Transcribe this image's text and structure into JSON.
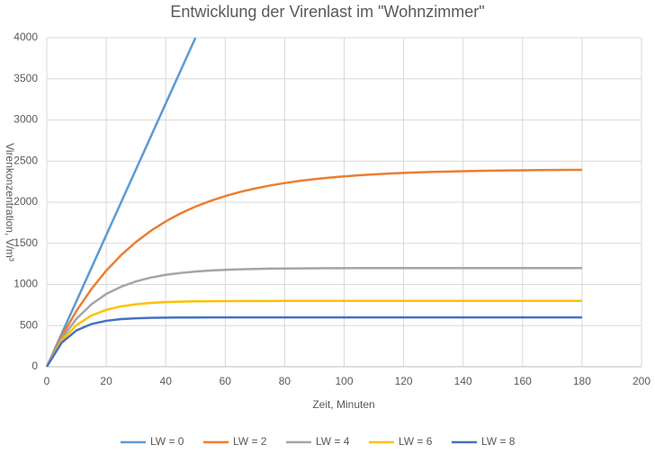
{
  "chart_data": {
    "type": "line",
    "title": "Entwicklung der Virenlast im \"Wohnzimmer\"",
    "x_label": "Zeit, Minuten",
    "y_label": "Virenkonzentration, V/m³",
    "x": [
      0,
      5,
      10,
      15,
      20,
      25,
      30,
      35,
      40,
      45,
      50,
      55,
      60,
      65,
      70,
      75,
      80,
      85,
      90,
      95,
      100,
      105,
      110,
      115,
      120,
      125,
      130,
      135,
      140,
      145,
      150,
      155,
      160,
      165,
      170,
      175,
      180
    ],
    "series": [
      {
        "name": "LW = 0",
        "color": "#5b9bd5",
        "values": [
          0,
          400,
          800,
          1200,
          1600,
          2000,
          2400,
          2800,
          3200,
          3600,
          4000,
          null,
          null,
          null,
          null,
          null,
          null,
          null,
          null,
          null,
          null,
          null,
          null,
          null,
          null,
          null,
          null,
          null,
          null,
          null,
          null,
          null,
          null,
          null,
          null,
          null,
          null
        ]
      },
      {
        "name": "LW = 2",
        "color": "#ed7d31",
        "values": [
          0,
          368,
          680,
          944,
          1168,
          1357,
          1517,
          1653,
          1767,
          1865,
          1947,
          2016,
          2075,
          2125,
          2167,
          2203,
          2233,
          2259,
          2280,
          2299,
          2314,
          2328,
          2339,
          2348,
          2356,
          2363,
          2369,
          2373,
          2377,
          2381,
          2384,
          2386,
          2388,
          2390,
          2392,
          2393,
          2394
        ]
      },
      {
        "name": "LW = 4",
        "color": "#a5a5a5",
        "values": [
          0,
          340,
          584,
          759,
          884,
          973,
          1038,
          1084,
          1117,
          1140,
          1157,
          1169,
          1178,
          1184,
          1189,
          1192,
          1194,
          1196,
          1197,
          1198,
          1198,
          1199,
          1199,
          1199,
          1199,
          1200,
          1200,
          1200,
          1200,
          1200,
          1200,
          1200,
          1200,
          1200,
          1200,
          1200,
          1200
        ]
      },
      {
        "name": "LW = 6",
        "color": "#ffc000",
        "values": [
          0,
          315,
          506,
          622,
          692,
          734,
          760,
          776,
          785,
          791,
          795,
          797,
          798,
          799,
          799,
          799,
          800,
          800,
          800,
          800,
          800,
          800,
          800,
          800,
          800,
          800,
          800,
          800,
          800,
          800,
          800,
          800,
          800,
          800,
          800,
          800,
          800
        ]
      },
      {
        "name": "LW = 8",
        "color": "#4472c4",
        "values": [
          0,
          292,
          442,
          519,
          558,
          579,
          589,
          594,
          597,
          599,
          599,
          600,
          600,
          600,
          600,
          600,
          600,
          600,
          600,
          600,
          600,
          600,
          600,
          600,
          600,
          600,
          600,
          600,
          600,
          600,
          600,
          600,
          600,
          600,
          600,
          600,
          600
        ]
      }
    ],
    "xlim": [
      0,
      200
    ],
    "xticks": [
      0,
      20,
      40,
      60,
      80,
      100,
      120,
      140,
      160,
      180,
      200
    ],
    "ylim": [
      0,
      4000
    ],
    "yticks": [
      0,
      500,
      1000,
      1500,
      2000,
      2500,
      3000,
      3500,
      4000
    ],
    "grid": true,
    "legend": "bottom"
  }
}
